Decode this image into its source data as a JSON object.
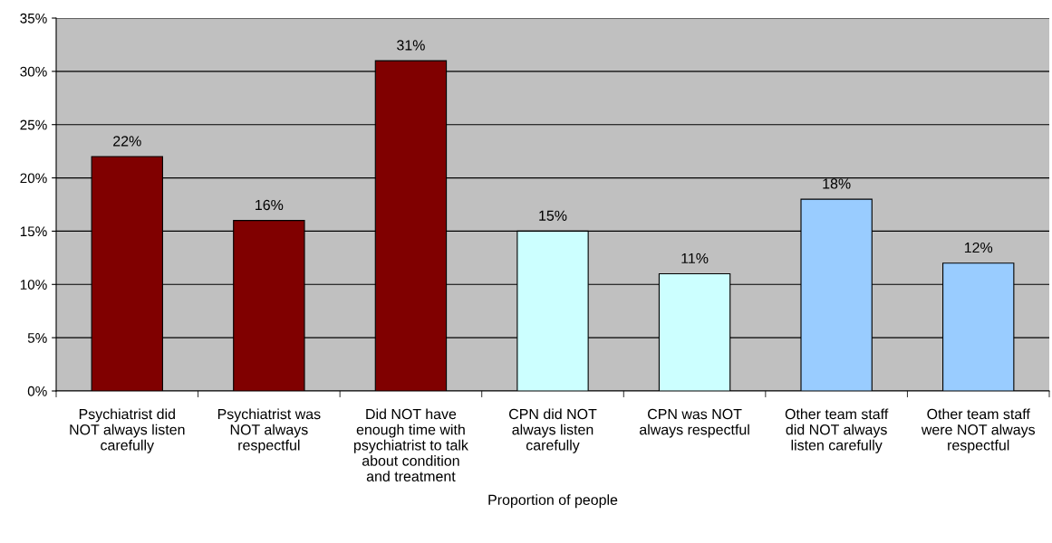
{
  "chart_data": {
    "type": "bar",
    "categories": [
      "Psychiatrist did\nNOT always listen\ncarefully",
      "Psychiatrist was\nNOT always\nrespectful",
      "Did NOT have\nenough time with\npsychiatrist to talk\nabout condition\nand treatment",
      "CPN did NOT\nalways listen\ncarefully",
      "CPN was NOT\nalways respectful",
      "Other team staff\ndid NOT always\nlisten carefully",
      "Other team staff\nwere NOT always\nrespectful"
    ],
    "values": [
      22,
      16,
      31,
      15,
      11,
      18,
      12
    ],
    "colors": [
      "#800000",
      "#800000",
      "#800000",
      "#ccffff",
      "#ccffff",
      "#99ccff",
      "#99ccff"
    ],
    "value_labels": [
      "22%",
      "16%",
      "31%",
      "15%",
      "11%",
      "18%",
      "12%"
    ],
    "xlabel": "Proportion of people",
    "ylim": [
      0,
      35
    ],
    "yticks": [
      {
        "value": 0,
        "label": "0%"
      },
      {
        "value": 5,
        "label": "5%"
      },
      {
        "value": 10,
        "label": "10%"
      },
      {
        "value": 15,
        "label": "15%"
      },
      {
        "value": 20,
        "label": "20%"
      },
      {
        "value": 25,
        "label": "25%"
      },
      {
        "value": 30,
        "label": "30%"
      },
      {
        "value": 35,
        "label": "35%"
      }
    ],
    "grid": "y"
  }
}
